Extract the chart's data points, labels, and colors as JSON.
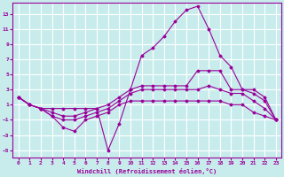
{
  "xlabel": "Windchill (Refroidissement éolien,°C)",
  "background_color": "#c8ecec",
  "grid_color": "#ffffff",
  "line_color": "#990099",
  "xlim": [
    -0.5,
    23.5
  ],
  "ylim": [
    -6.0,
    14.5
  ],
  "yticks": [
    -5,
    -3,
    -1,
    1,
    3,
    5,
    7,
    9,
    11,
    13
  ],
  "xticks": [
    0,
    1,
    2,
    3,
    4,
    5,
    6,
    7,
    8,
    9,
    10,
    11,
    12,
    13,
    14,
    15,
    16,
    17,
    18,
    19,
    20,
    21,
    22,
    23
  ],
  "line1_x": [
    0,
    1,
    2,
    3,
    4,
    5,
    6,
    7,
    8,
    9,
    10,
    11,
    12,
    13,
    14,
    15,
    16,
    17,
    18,
    19,
    20,
    21,
    22,
    23
  ],
  "line1_y": [
    2.0,
    1.0,
    0.5,
    0.5,
    0.5,
    0.5,
    0.5,
    0.5,
    -5.0,
    -1.5,
    3.0,
    7.5,
    8.5,
    10.0,
    12.0,
    13.5,
    14.0,
    11.0,
    7.5,
    6.0,
    3.0,
    3.0,
    2.0,
    -1.0
  ],
  "line2_x": [
    0,
    1,
    2,
    3,
    4,
    5,
    6,
    7,
    8,
    9,
    10,
    11,
    12,
    13,
    14,
    15,
    16,
    17,
    18,
    19,
    20,
    21,
    22,
    23
  ],
  "line2_y": [
    2.0,
    1.0,
    0.5,
    0.0,
    -0.5,
    -0.5,
    0.0,
    0.5,
    1.0,
    2.0,
    3.0,
    3.5,
    3.5,
    3.5,
    3.5,
    3.5,
    5.5,
    5.5,
    5.5,
    3.0,
    3.0,
    2.5,
    1.5,
    -1.0
  ],
  "line3_x": [
    0,
    1,
    2,
    3,
    4,
    5,
    6,
    7,
    8,
    9,
    10,
    11,
    12,
    13,
    14,
    15,
    16,
    17,
    18,
    19,
    20,
    21,
    22,
    23
  ],
  "line3_y": [
    2.0,
    1.0,
    0.5,
    -0.5,
    -1.0,
    -1.0,
    -0.5,
    0.0,
    0.5,
    1.5,
    2.5,
    3.0,
    3.0,
    3.0,
    3.0,
    3.0,
    3.0,
    3.5,
    3.0,
    2.5,
    2.5,
    1.5,
    0.5,
    -1.0
  ],
  "line4_x": [
    0,
    1,
    2,
    3,
    4,
    5,
    6,
    7,
    8,
    9,
    10,
    11,
    12,
    13,
    14,
    15,
    16,
    17,
    18,
    19,
    20,
    21,
    22,
    23
  ],
  "line4_y": [
    2.0,
    1.0,
    0.5,
    -0.5,
    -2.0,
    -2.5,
    -1.0,
    -0.5,
    0.0,
    1.0,
    1.5,
    1.5,
    1.5,
    1.5,
    1.5,
    1.5,
    1.5,
    1.5,
    1.5,
    1.0,
    1.0,
    0.0,
    -0.5,
    -1.0
  ]
}
